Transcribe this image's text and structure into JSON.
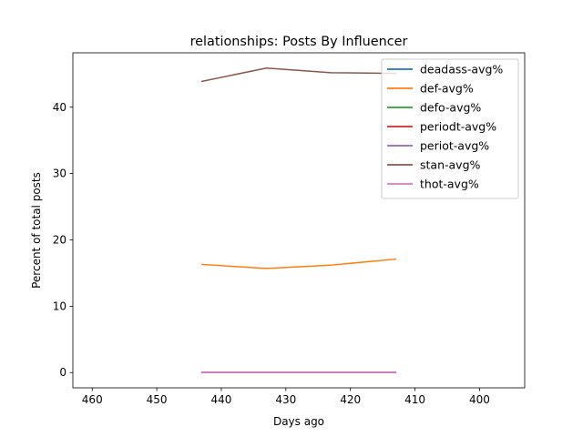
{
  "chart_data": {
    "type": "line",
    "title": "relationships: Posts By Influencer",
    "xlabel": "Days ago",
    "ylabel": "Percent of total posts",
    "x_axis_inverted": true,
    "xlim": [
      463,
      393
    ],
    "ylim": [
      -2.3,
      48.2
    ],
    "xticks": [
      460,
      450,
      440,
      430,
      420,
      410,
      400
    ],
    "yticks": [
      0,
      10,
      20,
      30,
      40
    ],
    "grid": false,
    "legend_position": "top-right",
    "x": [
      443,
      433,
      423,
      413
    ],
    "series": [
      {
        "name": "deadass-avg%",
        "color": "#1f77b4",
        "values": [
          0.05,
          0.05,
          0.05,
          0.05
        ]
      },
      {
        "name": "def-avg%",
        "color": "#ff7f0e",
        "values": [
          16.3,
          15.7,
          16.2,
          17.1
        ]
      },
      {
        "name": "defo-avg%",
        "color": "#2ca02c",
        "values": [
          0.05,
          0.05,
          0.05,
          0.05
        ]
      },
      {
        "name": "periodt-avg%",
        "color": "#d62728",
        "values": [
          0.05,
          0.05,
          0.05,
          0.05
        ]
      },
      {
        "name": "periot-avg%",
        "color": "#9467bd",
        "values": [
          0.05,
          0.05,
          0.05,
          0.05
        ]
      },
      {
        "name": "stan-avg%",
        "color": "#8c564b",
        "values": [
          43.9,
          45.9,
          45.2,
          45.1
        ]
      },
      {
        "name": "thot-avg%",
        "color": "#e377c2",
        "values": [
          0.05,
          0.05,
          0.05,
          0.05
        ]
      }
    ]
  }
}
